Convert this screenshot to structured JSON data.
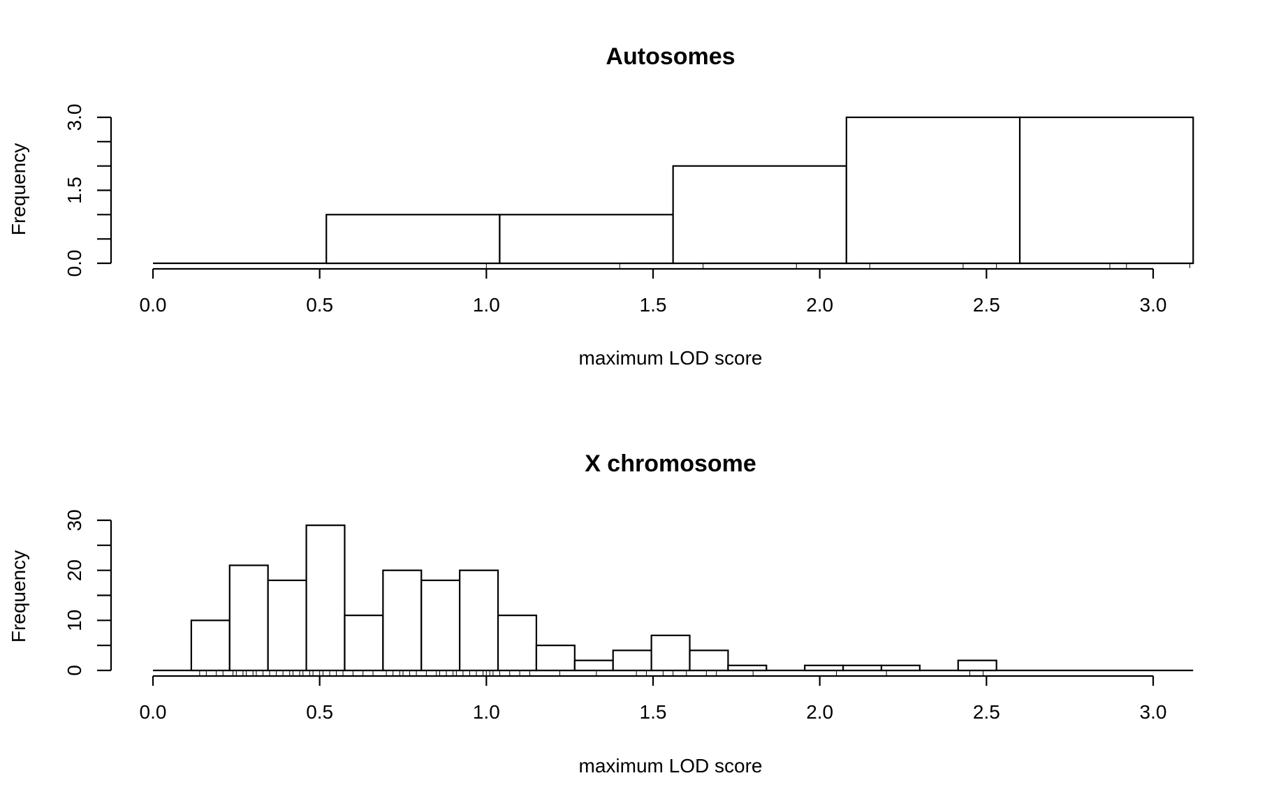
{
  "chart_data": [
    {
      "type": "histogram",
      "title": "Autosomes",
      "xlabel": "maximum LOD score",
      "ylabel": "Frequency",
      "xlim": [
        0,
        3.12
      ],
      "ylim": [
        0,
        3
      ],
      "x_ticks": [
        "0.0",
        "0.5",
        "1.0",
        "1.5",
        "2.0",
        "2.5",
        "3.0"
      ],
      "x_tick_values": [
        0,
        0.5,
        1.0,
        1.5,
        2.0,
        2.5,
        3.0
      ],
      "y_ticks": [
        "0.0",
        "1.5",
        "3.0"
      ],
      "y_tick_values": [
        0,
        1.5,
        3.0
      ],
      "y_minor_ticks": [
        0.5,
        1.0,
        2.0,
        2.5
      ],
      "bins": [
        {
          "start": 0.0,
          "end": 0.52,
          "count": 0
        },
        {
          "start": 0.52,
          "end": 1.04,
          "count": 1
        },
        {
          "start": 1.04,
          "end": 1.56,
          "count": 1
        },
        {
          "start": 1.56,
          "end": 2.08,
          "count": 2
        },
        {
          "start": 2.08,
          "end": 2.6,
          "count": 3
        },
        {
          "start": 2.6,
          "end": 3.12,
          "count": 3
        }
      ],
      "rug": [
        1.0,
        1.4,
        1.65,
        1.93,
        2.15,
        2.43,
        2.53,
        2.87,
        2.92,
        3.11
      ]
    },
    {
      "type": "histogram",
      "title": "X chromosome",
      "xlabel": "maximum LOD score",
      "ylabel": "Frequency",
      "xlim": [
        0,
        3.12
      ],
      "ylim": [
        0,
        30
      ],
      "x_ticks": [
        "0.0",
        "0.5",
        "1.0",
        "1.5",
        "2.0",
        "2.5",
        "3.0"
      ],
      "x_tick_values": [
        0,
        0.5,
        1.0,
        1.5,
        2.0,
        2.5,
        3.0
      ],
      "y_ticks": [
        "0",
        "10",
        "20",
        "30"
      ],
      "y_tick_values": [
        0,
        10,
        20,
        30
      ],
      "y_minor_ticks": [
        5,
        15,
        25
      ],
      "bins": [
        {
          "start": 0.0,
          "end": 0.115,
          "count": 0
        },
        {
          "start": 0.115,
          "end": 0.23,
          "count": 10
        },
        {
          "start": 0.23,
          "end": 0.345,
          "count": 21
        },
        {
          "start": 0.345,
          "end": 0.46,
          "count": 18
        },
        {
          "start": 0.46,
          "end": 0.575,
          "count": 29
        },
        {
          "start": 0.575,
          "end": 0.69,
          "count": 11
        },
        {
          "start": 0.69,
          "end": 0.805,
          "count": 20
        },
        {
          "start": 0.805,
          "end": 0.92,
          "count": 18
        },
        {
          "start": 0.92,
          "end": 1.035,
          "count": 20
        },
        {
          "start": 1.035,
          "end": 1.15,
          "count": 11
        },
        {
          "start": 1.15,
          "end": 1.265,
          "count": 5
        },
        {
          "start": 1.265,
          "end": 1.38,
          "count": 2
        },
        {
          "start": 1.38,
          "end": 1.495,
          "count": 4
        },
        {
          "start": 1.495,
          "end": 1.61,
          "count": 7
        },
        {
          "start": 1.61,
          "end": 1.725,
          "count": 4
        },
        {
          "start": 1.725,
          "end": 1.84,
          "count": 1
        },
        {
          "start": 1.84,
          "end": 1.955,
          "count": 0
        },
        {
          "start": 1.955,
          "end": 2.07,
          "count": 1
        },
        {
          "start": 2.07,
          "end": 2.185,
          "count": 1
        },
        {
          "start": 2.185,
          "end": 2.3,
          "count": 1
        },
        {
          "start": 2.3,
          "end": 2.415,
          "count": 0
        },
        {
          "start": 2.415,
          "end": 2.53,
          "count": 2
        },
        {
          "start": 2.53,
          "end": 3.12,
          "count": 0
        }
      ],
      "rug": [
        0.14,
        0.16,
        0.19,
        0.21,
        0.24,
        0.25,
        0.27,
        0.28,
        0.3,
        0.31,
        0.33,
        0.35,
        0.37,
        0.39,
        0.41,
        0.42,
        0.44,
        0.45,
        0.47,
        0.48,
        0.5,
        0.51,
        0.53,
        0.55,
        0.57,
        0.6,
        0.63,
        0.66,
        0.7,
        0.72,
        0.74,
        0.75,
        0.77,
        0.79,
        0.82,
        0.85,
        0.86,
        0.88,
        0.9,
        0.91,
        0.93,
        0.95,
        0.97,
        0.99,
        1.0,
        1.01,
        1.02,
        1.04,
        1.07,
        1.1,
        1.13,
        1.22,
        1.33,
        1.45,
        1.48,
        1.53,
        1.56,
        1.6,
        1.66,
        1.69,
        1.8,
        2.05,
        2.2,
        2.45,
        2.49
      ]
    }
  ]
}
